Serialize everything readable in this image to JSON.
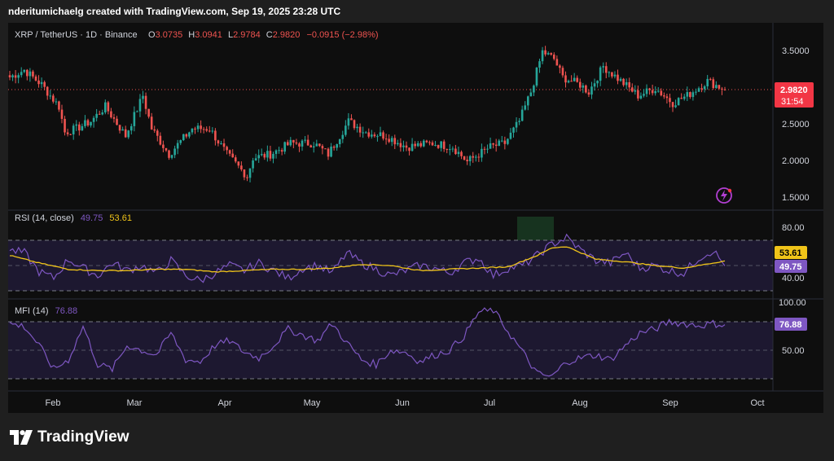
{
  "header": {
    "credit": "nderitumichaelg created with TradingView.com, Sep 19, 2025 23:28 UTC"
  },
  "legend": {
    "symbol": "XRP / TetherUS · 1D · Binance",
    "o_label": "O",
    "o_value": "3.0735",
    "h_label": "H",
    "h_value": "3.0941",
    "l_label": "L",
    "l_value": "2.9784",
    "c_label": "C",
    "c_value": "2.9820",
    "change": "−0.0915 (−2.98%)"
  },
  "price_axis": {
    "ticks": [
      "3.5000",
      "3.0000",
      "2.5000",
      "2.0000",
      "1.5000"
    ],
    "tick_values": [
      3.5,
      3.0,
      2.5,
      2.0,
      1.5
    ]
  },
  "last_price": {
    "value": "2.9820",
    "countdown": "31:54"
  },
  "rsi": {
    "title": "RSI (14, close)",
    "rsi_value": "49.75",
    "ma_value": "53.61",
    "axis_ticks": [
      "80.00",
      "40.00"
    ]
  },
  "mfi": {
    "title": "MFI (14)",
    "value": "76.88",
    "axis_ticks": [
      "100.00",
      "50.00"
    ]
  },
  "time_axis": {
    "labels": [
      "Feb",
      "Mar",
      "Apr",
      "May",
      "Jun",
      "Jul",
      "Aug",
      "Sep",
      "Oct"
    ]
  },
  "brand": {
    "name": "TradingView",
    "icon": "tradingview-logo-icon"
  },
  "colors": {
    "up": "#26a69a",
    "down": "#ef5350",
    "rsi": "#7e57c2",
    "rsi_ma": "#f0c419",
    "mfi": "#7e57c2",
    "background": "#0e0e0e",
    "outer": "#1f1f1f"
  },
  "chart_data": [
    {
      "type": "candlestick",
      "title": "XRP / TetherUS · 1D · Binance",
      "ylim": [
        1.4,
        3.7
      ],
      "x_range": [
        "2025-01-15",
        "2025-09-19"
      ],
      "approx_closes": [
        [
          "2025-01-15",
          3.15
        ],
        [
          "2025-01-20",
          3.25
        ],
        [
          "2025-01-26",
          3.05
        ],
        [
          "2025-02-01",
          2.75
        ],
        [
          "2025-02-03",
          2.4
        ],
        [
          "2025-02-07",
          2.45
        ],
        [
          "2025-02-12",
          2.55
        ],
        [
          "2025-02-17",
          2.75
        ],
        [
          "2025-02-24",
          2.35
        ],
        [
          "2025-03-02",
          2.9
        ],
        [
          "2025-03-05",
          2.45
        ],
        [
          "2025-03-11",
          2.1
        ],
        [
          "2025-03-19",
          2.45
        ],
        [
          "2025-03-25",
          2.45
        ],
        [
          "2025-03-31",
          2.1
        ],
        [
          "2025-04-07",
          1.8
        ],
        [
          "2025-04-09",
          2.05
        ],
        [
          "2025-04-15",
          2.1
        ],
        [
          "2025-04-22",
          2.25
        ],
        [
          "2025-04-30",
          2.25
        ],
        [
          "2025-05-05",
          2.1
        ],
        [
          "2025-05-12",
          2.55
        ],
        [
          "2025-05-18",
          2.4
        ],
        [
          "2025-05-25",
          2.35
        ],
        [
          "2025-06-01",
          2.2
        ],
        [
          "2025-06-10",
          2.25
        ],
        [
          "2025-06-17",
          2.2
        ],
        [
          "2025-06-22",
          2.0
        ],
        [
          "2025-06-30",
          2.2
        ],
        [
          "2025-07-05",
          2.25
        ],
        [
          "2025-07-10",
          2.55
        ],
        [
          "2025-07-14",
          2.95
        ],
        [
          "2025-07-18",
          3.5
        ],
        [
          "2025-07-22",
          3.4
        ],
        [
          "2025-07-25",
          3.15
        ],
        [
          "2025-07-31",
          3.05
        ],
        [
          "2025-08-03",
          2.95
        ],
        [
          "2025-08-08",
          3.3
        ],
        [
          "2025-08-14",
          3.1
        ],
        [
          "2025-08-20",
          2.9
        ],
        [
          "2025-08-26",
          3.0
        ],
        [
          "2025-09-01",
          2.8
        ],
        [
          "2025-09-06",
          2.9
        ],
        [
          "2025-09-13",
          3.1
        ],
        [
          "2025-09-19",
          2.982
        ]
      ]
    },
    {
      "type": "line",
      "title": "RSI (14, close)",
      "ylim": [
        10,
        100
      ],
      "bands": [
        30,
        70
      ],
      "series": [
        {
          "name": "RSI",
          "values": [
            [
              0,
              62
            ],
            [
              5,
              60
            ],
            [
              10,
              45
            ],
            [
              15,
              40
            ],
            [
              20,
              55
            ],
            [
              25,
              48
            ],
            [
              30,
              42
            ],
            [
              35,
              52
            ],
            [
              40,
              46
            ],
            [
              45,
              50
            ],
            [
              50,
              44
            ],
            [
              55,
              54
            ],
            [
              60,
              42
            ],
            [
              65,
              38
            ],
            [
              70,
              44
            ],
            [
              75,
              50
            ],
            [
              80,
              46
            ],
            [
              85,
              52
            ],
            [
              90,
              46
            ],
            [
              95,
              40
            ],
            [
              100,
              48
            ],
            [
              105,
              50
            ],
            [
              110,
              44
            ],
            [
              115,
              60
            ],
            [
              120,
              52
            ],
            [
              125,
              47
            ],
            [
              130,
              42
            ],
            [
              135,
              46
            ],
            [
              140,
              50
            ],
            [
              145,
              48
            ],
            [
              150,
              44
            ],
            [
              155,
              52
            ],
            [
              160,
              56
            ],
            [
              165,
              42
            ],
            [
              170,
              48
            ],
            [
              175,
              50
            ],
            [
              180,
              58
            ],
            [
              185,
              67
            ],
            [
              190,
              72
            ],
            [
              195,
              62
            ],
            [
              200,
              54
            ],
            [
              205,
              52
            ],
            [
              210,
              60
            ],
            [
              215,
              48
            ],
            [
              220,
              50
            ],
            [
              225,
              46
            ],
            [
              230,
              44
            ],
            [
              235,
              56
            ],
            [
              240,
              62
            ],
            [
              244,
              49.75
            ]
          ]
        },
        {
          "name": "RSI MA",
          "values": [
            [
              0,
              58
            ],
            [
              10,
              52
            ],
            [
              20,
              47
            ],
            [
              30,
              46
            ],
            [
              40,
              46
            ],
            [
              50,
              47
            ],
            [
              60,
              47
            ],
            [
              70,
              45
            ],
            [
              80,
              46
            ],
            [
              90,
              47
            ],
            [
              100,
              47
            ],
            [
              110,
              48
            ],
            [
              120,
              51
            ],
            [
              130,
              50
            ],
            [
              140,
              46
            ],
            [
              150,
              47
            ],
            [
              160,
              48
            ],
            [
              170,
              49
            ],
            [
              180,
              58
            ],
            [
              185,
              64
            ],
            [
              190,
              65
            ],
            [
              195,
              60
            ],
            [
              200,
              55
            ],
            [
              210,
              53
            ],
            [
              220,
              50
            ],
            [
              230,
              48
            ],
            [
              244,
              53.61
            ]
          ]
        }
      ]
    },
    {
      "type": "line",
      "title": "MFI (14)",
      "ylim": [
        10,
        102
      ],
      "bands": [
        20,
        50,
        80
      ],
      "series": [
        {
          "name": "MFI",
          "values": [
            [
              0,
              78
            ],
            [
              5,
              75
            ],
            [
              10,
              55
            ],
            [
              15,
              30
            ],
            [
              20,
              40
            ],
            [
              25,
              75
            ],
            [
              30,
              35
            ],
            [
              35,
              30
            ],
            [
              40,
              55
            ],
            [
              45,
              50
            ],
            [
              50,
              45
            ],
            [
              55,
              68
            ],
            [
              60,
              40
            ],
            [
              65,
              38
            ],
            [
              70,
              55
            ],
            [
              75,
              60
            ],
            [
              80,
              48
            ],
            [
              85,
              42
            ],
            [
              90,
              55
            ],
            [
              95,
              72
            ],
            [
              100,
              66
            ],
            [
              105,
              60
            ],
            [
              110,
              78
            ],
            [
              115,
              58
            ],
            [
              120,
              40
            ],
            [
              125,
              35
            ],
            [
              130,
              50
            ],
            [
              135,
              48
            ],
            [
              140,
              38
            ],
            [
              145,
              45
            ],
            [
              150,
              50
            ],
            [
              155,
              65
            ],
            [
              160,
              90
            ],
            [
              165,
              92
            ],
            [
              170,
              70
            ],
            [
              175,
              48
            ],
            [
              180,
              25
            ],
            [
              185,
              22
            ],
            [
              190,
              38
            ],
            [
              195,
              42
            ],
            [
              200,
              45
            ],
            [
              205,
              40
            ],
            [
              210,
              55
            ],
            [
              215,
              68
            ],
            [
              220,
              72
            ],
            [
              225,
              80
            ],
            [
              230,
              78
            ],
            [
              235,
              76
            ],
            [
              240,
              78
            ],
            [
              244,
              76.88
            ]
          ]
        }
      ]
    }
  ]
}
